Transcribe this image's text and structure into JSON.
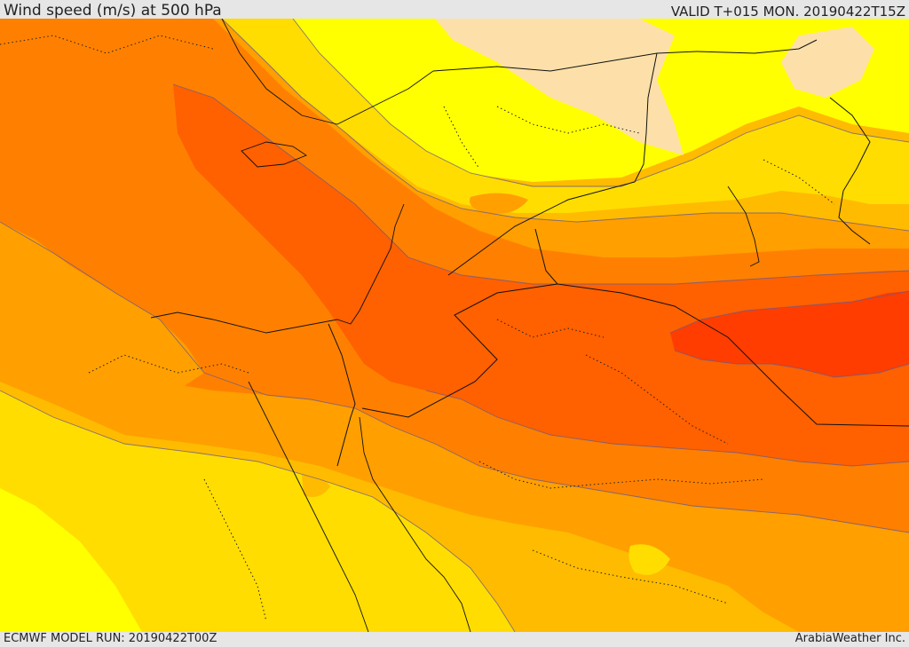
{
  "header": {
    "title": "Wind speed (m/s) at 500 hPa",
    "valid": "VALID T+015 MON. 20190422T15Z"
  },
  "footer": {
    "model_run": "ECMWF MODEL RUN: 20190422T00Z",
    "credit": "ArabiaWeather Inc."
  },
  "colors": {
    "band_0": "#ffff00",
    "band_1": "#ffdd00",
    "band_2": "#ffbb00",
    "band_3": "#ff9f00",
    "band_4": "#ff8000",
    "band_5": "#ff6000",
    "band_6": "#ff3d00",
    "calm": "#fde0a9",
    "contour": "#6a5a8a",
    "border": "#111111",
    "frame": "#e6e6e6"
  }
}
